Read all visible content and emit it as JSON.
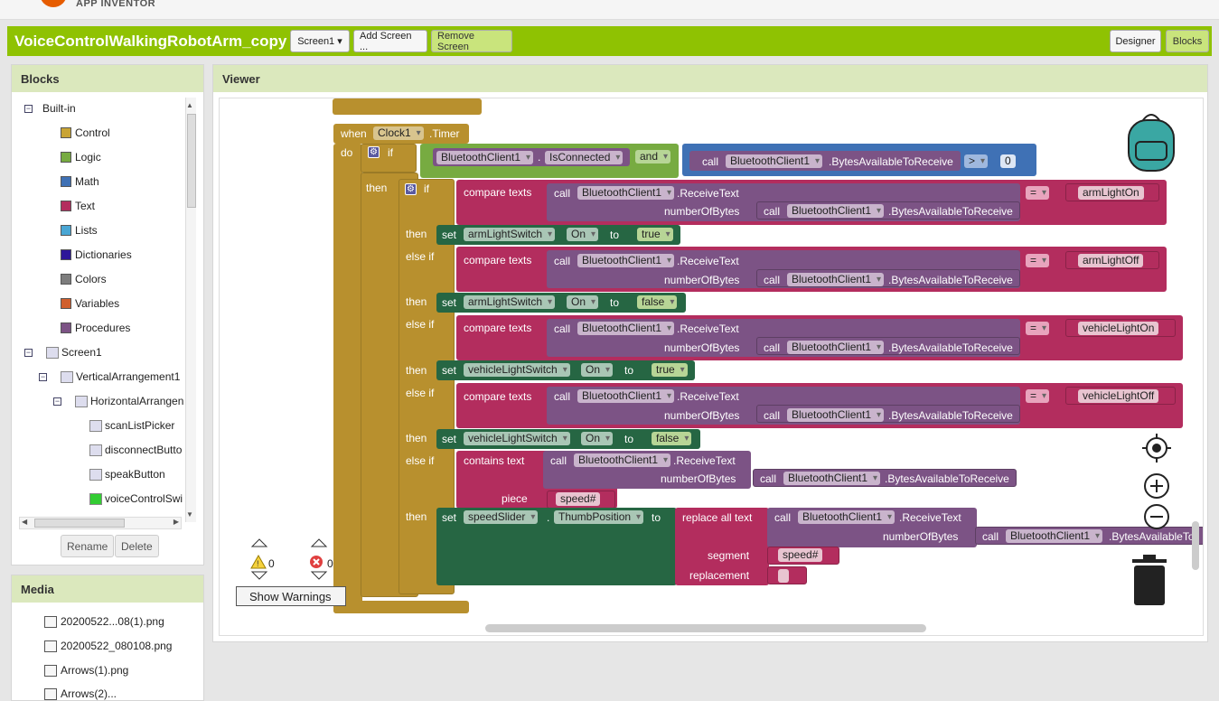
{
  "app": {
    "logo_text": "APP INVENTOR"
  },
  "header": {
    "project_title": "VoiceControlWalkingRobotArm_copy",
    "screen_select": "Screen1",
    "add_screen": "Add Screen ...",
    "remove_screen": "Remove Screen",
    "designer": "Designer",
    "blocks": "Blocks"
  },
  "blocks_panel": {
    "title": "Blocks",
    "builtin": "Built-in",
    "categories": [
      {
        "label": "Control",
        "color": "#c9a435"
      },
      {
        "label": "Logic",
        "color": "#77ab41"
      },
      {
        "label": "Math",
        "color": "#3f71b5"
      },
      {
        "label": "Text",
        "color": "#b32d5e"
      },
      {
        "label": "Lists",
        "color": "#49a6d4"
      },
      {
        "label": "Dictionaries",
        "color": "#2d1799"
      },
      {
        "label": "Colors",
        "color": "#7d7d7d"
      },
      {
        "label": "Variables",
        "color": "#d05f2d"
      },
      {
        "label": "Procedures",
        "color": "#7c5385"
      }
    ],
    "components": [
      "Screen1",
      "VerticalArrangement1",
      "HorizontalArrangen",
      "scanListPicker",
      "disconnectButto",
      "speakButton",
      "voiceControlSwi"
    ],
    "rename": "Rename",
    "delete": "Delete"
  },
  "media_panel": {
    "title": "Media",
    "items": [
      "20200522...08(1).png",
      "20200522_080108.png",
      "Arrows(1).png",
      "Arrows(2)..."
    ]
  },
  "viewer": {
    "title": "Viewer",
    "warnings_count": "0",
    "errors_count": "0",
    "show_warnings": "Show Warnings"
  },
  "code": {
    "when": "when",
    "do": "do",
    "if": "if",
    "then": "then",
    "else_if": "else if",
    "clock": "Clock1",
    "timer": ".Timer",
    "bt": "BluetoothClient1",
    "is_connected": "IsConnected",
    "and": "and",
    "call": "call",
    "bytes_avail": ".BytesAvailableToReceive",
    "gt": ">",
    "zero": "0",
    "compare_texts": "compare texts",
    "receive_text": ".ReceiveText",
    "number_of_bytes": "numberOfBytes",
    "eq": "=",
    "set": "set",
    "to": "to",
    "on_prop": "On",
    "true": "true",
    "false": "false",
    "arm_switch": "armLightSwitch",
    "vehicle_switch": "vehicleLightSwitch",
    "arm_on": "armLightOn",
    "arm_off": "armLightOff",
    "vehicle_on": "vehicleLightOn",
    "vehicle_off": "vehicleLightOff",
    "contains_text": "contains text",
    "piece": "piece",
    "speed": "speed#",
    "speed_slider": "speedSlider",
    "thumb": "ThumbPosition",
    "replace_all": "replace all text",
    "segment": "segment",
    "replacement": "replacement",
    "bytes_avail_cut": ".BytesAvailableTo"
  }
}
